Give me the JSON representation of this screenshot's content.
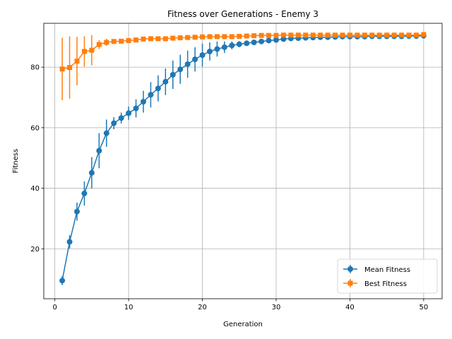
{
  "chart_data": {
    "type": "line",
    "title": "Fitness over Generations - Enemy 3",
    "xlabel": "Generation",
    "ylabel": "Fitness",
    "xlim": [
      -1.5,
      52.5
    ],
    "ylim": [
      3.5,
      94.5
    ],
    "xticks": [
      0,
      10,
      20,
      30,
      40,
      50
    ],
    "yticks": [
      20,
      40,
      60,
      80
    ],
    "grid": true,
    "legend_position": "lower right",
    "error_bars": true,
    "x": [
      1,
      2,
      3,
      4,
      5,
      6,
      7,
      8,
      9,
      10,
      11,
      12,
      13,
      14,
      15,
      16,
      17,
      18,
      19,
      20,
      21,
      22,
      23,
      24,
      25,
      26,
      27,
      28,
      29,
      30,
      31,
      32,
      33,
      34,
      35,
      36,
      37,
      38,
      39,
      40,
      41,
      42,
      43,
      44,
      45,
      46,
      47,
      48,
      49,
      50
    ],
    "series": [
      {
        "name": "Mean Fitness",
        "color": "#1f77b4",
        "marker": "circle",
        "values": [
          9.5,
          22.3,
          32.3,
          38.3,
          45.1,
          52.4,
          58.2,
          61.5,
          63.2,
          64.8,
          66.4,
          68.6,
          70.9,
          73.0,
          75.2,
          77.5,
          79.3,
          81.0,
          82.6,
          84.0,
          85.2,
          86.0,
          86.6,
          87.2,
          87.6,
          87.9,
          88.2,
          88.5,
          88.8,
          89.0,
          89.3,
          89.5,
          89.6,
          89.7,
          89.8,
          89.9,
          89.9,
          90.0,
          90.1,
          90.1,
          90.1,
          90.1,
          90.2,
          90.2,
          90.2,
          90.2,
          90.2,
          90.3,
          90.3,
          90.4
        ],
        "errors": [
          1.5,
          2.2,
          3.0,
          4.0,
          5.2,
          5.8,
          4.5,
          2.0,
          1.8,
          2.2,
          3.0,
          3.6,
          4.2,
          4.3,
          4.4,
          4.7,
          4.8,
          4.5,
          4.0,
          3.8,
          3.0,
          2.5,
          1.9,
          1.3,
          1.0,
          0.8,
          0.7,
          0.6,
          0.6,
          0.5,
          0.5,
          0.5,
          0.4,
          0.4,
          0.4,
          0.4,
          0.4,
          0.4,
          0.4,
          0.3,
          0.3,
          0.3,
          0.3,
          0.3,
          0.3,
          0.3,
          0.3,
          0.3,
          0.3,
          0.3
        ]
      },
      {
        "name": "Best Fitness",
        "color": "#ff7f0e",
        "marker": "square",
        "values": [
          79.4,
          79.9,
          82.0,
          85.2,
          85.6,
          87.5,
          88.2,
          88.5,
          88.6,
          88.8,
          89.0,
          89.3,
          89.4,
          89.4,
          89.4,
          89.6,
          89.7,
          89.8,
          89.9,
          90.0,
          90.1,
          90.1,
          90.1,
          90.1,
          90.2,
          90.3,
          90.4,
          90.5,
          90.5,
          90.5,
          90.6,
          90.6,
          90.6,
          90.6,
          90.6,
          90.6,
          90.6,
          90.6,
          90.6,
          90.6,
          90.6,
          90.6,
          90.6,
          90.6,
          90.6,
          90.6,
          90.6,
          90.6,
          90.6,
          90.8
        ],
        "errors": [
          10.3,
          10.3,
          8.0,
          5.0,
          5.0,
          1.5,
          1.2,
          0.8,
          0.6,
          0.6,
          0.6,
          0.6,
          0.6,
          0.5,
          0.5,
          0.5,
          0.5,
          0.5,
          0.5,
          0.5,
          0.5,
          0.5,
          0.5,
          0.5,
          0.5,
          0.5,
          0.5,
          0.5,
          0.5,
          0.5,
          0.5,
          0.5,
          0.5,
          0.5,
          0.5,
          0.5,
          0.5,
          0.5,
          0.5,
          0.5,
          0.5,
          0.5,
          0.5,
          0.5,
          0.5,
          0.5,
          0.5,
          0.5,
          0.5,
          0.5
        ]
      }
    ]
  }
}
